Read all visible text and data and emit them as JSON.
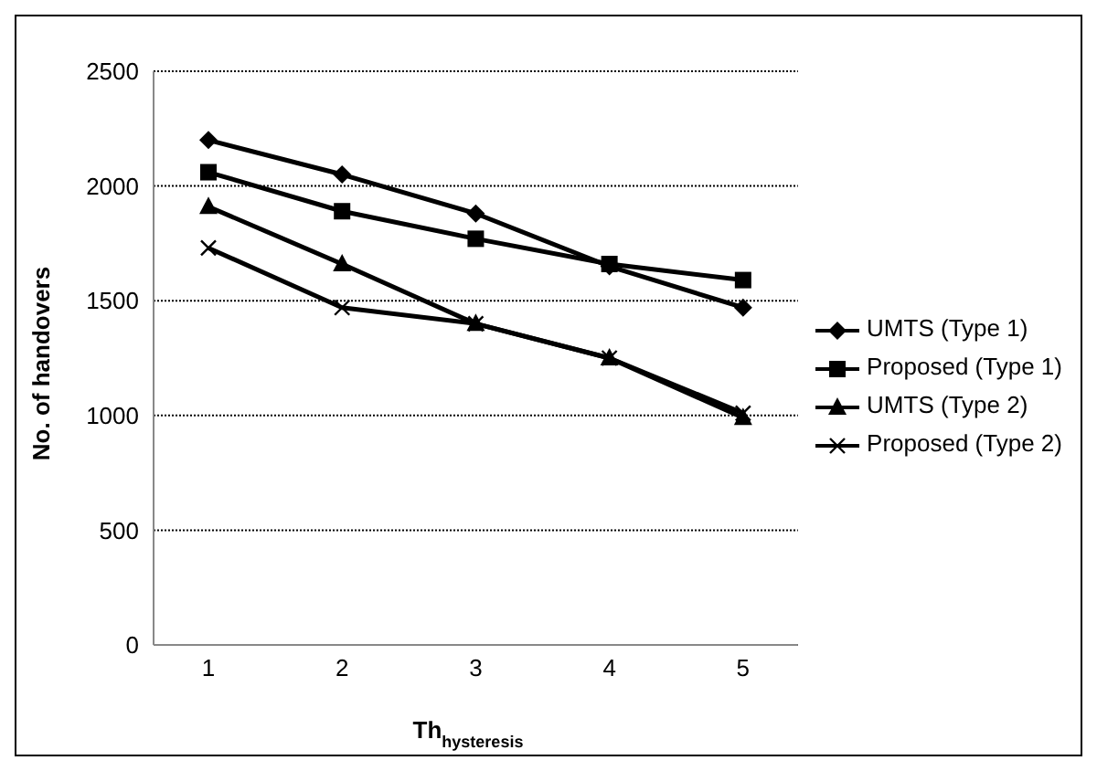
{
  "chart_data": {
    "type": "line",
    "xlabel": "Th$_{hysteresis}$",
    "ylabel": "No. of handovers",
    "categories": [
      "1",
      "2",
      "3",
      "4",
      "5"
    ],
    "series": [
      {
        "name": "UMTS (Type 1)",
        "color": "#000000",
        "marker": "diamond",
        "values": [
          2200,
          2050,
          1880,
          1650,
          1470
        ]
      },
      {
        "name": "Proposed (Type 1)",
        "color": "#000000",
        "marker": "square",
        "values": [
          2060,
          1890,
          1770,
          1660,
          1590
        ]
      },
      {
        "name": "UMTS (Type 2)",
        "color": "#000000",
        "marker": "triangle",
        "values": [
          1910,
          1660,
          1400,
          1250,
          990
        ]
      },
      {
        "name": "Proposed (Type 2)",
        "color": "#000000",
        "marker": "cross",
        "values": [
          1730,
          1470,
          1400,
          1250,
          1010
        ]
      }
    ],
    "ylim": [
      0,
      2500
    ],
    "yticks": [
      0,
      500,
      1000,
      1500,
      2000,
      2500
    ],
    "grid": "y",
    "legend": "right"
  }
}
